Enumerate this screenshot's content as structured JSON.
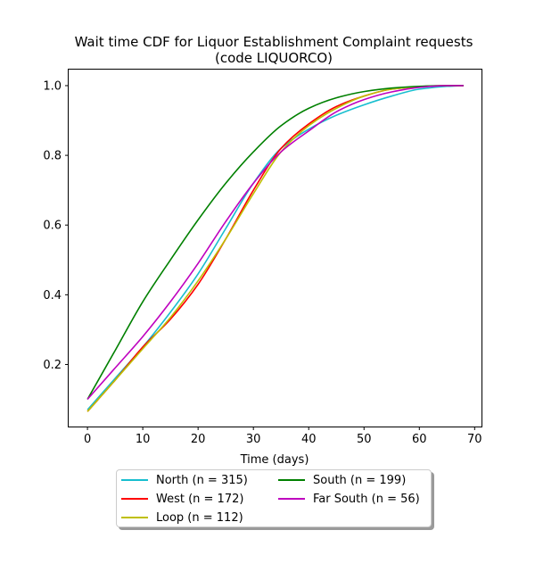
{
  "chart_data": {
    "type": "line",
    "title": "Wait time CDF for Liquor Establishment Complaint  requests",
    "subtitle": "(code LIQUORCO)",
    "xlabel": "Time (days)",
    "ylabel": "",
    "xlim": [
      -3.4,
      71.4
    ],
    "ylim": [
      0.022,
      1.046
    ],
    "xticks": [
      0,
      10,
      20,
      30,
      40,
      50,
      60,
      70
    ],
    "yticks": [
      0.2,
      0.4,
      0.6,
      0.8,
      1.0
    ],
    "ytick_labels": [
      "0.2",
      "0.4",
      "0.6",
      "0.8",
      "1.0"
    ],
    "grid": false,
    "legend_position": "below plot",
    "x": [
      0,
      5,
      10,
      15,
      20,
      25,
      30,
      35,
      40,
      45,
      50,
      55,
      60,
      65,
      68
    ],
    "series": [
      {
        "name": "North (n = 315)",
        "color": "#17becf",
        "values": [
          0.07,
          0.16,
          0.25,
          0.35,
          0.46,
          0.59,
          0.72,
          0.82,
          0.875,
          0.915,
          0.945,
          0.97,
          0.99,
          0.998,
          1.0
        ]
      },
      {
        "name": "West (n = 172)",
        "color": "#ff0000",
        "values": [
          0.065,
          0.155,
          0.25,
          0.33,
          0.43,
          0.56,
          0.7,
          0.82,
          0.89,
          0.94,
          0.97,
          0.99,
          0.997,
          1.0,
          1.0
        ]
      },
      {
        "name": "Loop (n = 112)",
        "color": "#bfbf00",
        "values": [
          0.065,
          0.155,
          0.245,
          0.335,
          0.44,
          0.56,
          0.69,
          0.81,
          0.885,
          0.935,
          0.97,
          0.99,
          0.997,
          1.0,
          1.0
        ]
      },
      {
        "name": "South (n = 199)",
        "color": "#008000",
        "values": [
          0.1,
          0.24,
          0.38,
          0.5,
          0.615,
          0.72,
          0.81,
          0.885,
          0.935,
          0.965,
          0.983,
          0.993,
          0.998,
          1.0,
          1.0
        ]
      },
      {
        "name": "Far South (n = 56)",
        "color": "#bf00bf",
        "values": [
          0.1,
          0.19,
          0.28,
          0.38,
          0.49,
          0.61,
          0.72,
          0.81,
          0.87,
          0.925,
          0.96,
          0.982,
          0.995,
          1.0,
          1.0
        ]
      }
    ]
  },
  "legend": {
    "col1": [
      {
        "label": "North (n = 315)",
        "color": "#17becf"
      },
      {
        "label": "West (n = 172)",
        "color": "#ff0000"
      },
      {
        "label": "Loop (n = 112)",
        "color": "#bfbf00"
      }
    ],
    "col2": [
      {
        "label": "South (n = 199)",
        "color": "#008000"
      },
      {
        "label": "Far South (n = 56)",
        "color": "#bf00bf"
      }
    ]
  }
}
